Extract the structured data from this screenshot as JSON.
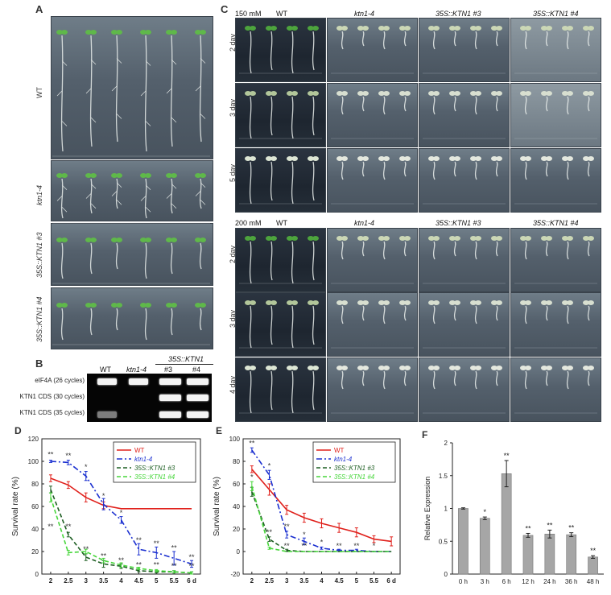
{
  "panels": {
    "a": "A",
    "b": "B",
    "c": "C",
    "d": "D",
    "e": "E",
    "f": "F"
  },
  "panel_a": {
    "rows": [
      "WT",
      "ktn1-4",
      "35S::KTN1 #3",
      "35S::KTN1 #4"
    ]
  },
  "panel_b": {
    "col_header": "35S::KTN1",
    "cols": [
      "WT",
      "ktn1-4",
      "#3",
      "#4"
    ],
    "rows": [
      "eIF4A (26 cycles)",
      "KTN1 CDS (30 cycles)",
      "KTN1 CDS (35 cycles)"
    ],
    "bands": [
      [
        1,
        1,
        1,
        1
      ],
      [
        0,
        0,
        1,
        1
      ],
      [
        0.5,
        0,
        1,
        1
      ]
    ]
  },
  "panel_c": {
    "top": {
      "concentration": "150 mM",
      "cols": [
        "WT",
        "ktn1-4",
        "35S::KTN1 #3",
        "35S::KTN1 #4"
      ],
      "rows": [
        "2 day",
        "3 day",
        "5 day"
      ]
    },
    "bottom": {
      "concentration": "200 mM",
      "cols": [
        "WT",
        "ktn1-4",
        "35S::KTN1 #3",
        "35S::KTN1 #4"
      ],
      "rows": [
        "2 day",
        "3 day",
        "4 day"
      ]
    }
  },
  "chart_data": [
    {
      "id": "D",
      "type": "line",
      "ylabel": "Survival rate (%)",
      "x": [
        2,
        2.5,
        3,
        3.5,
        4,
        4.5,
        5,
        5.5,
        6
      ],
      "xticklabels": [
        "2",
        "2.5",
        "3",
        "3.5",
        "4",
        "4.5",
        "5",
        "5.5",
        "6 d"
      ],
      "yticks": [
        0,
        20,
        40,
        60,
        80,
        100,
        120
      ],
      "ylim": [
        0,
        120
      ],
      "series": [
        {
          "name": "WT",
          "color": "#e0201b",
          "dash": "",
          "values": [
            85,
            79,
            68,
            61,
            58,
            58,
            58,
            58,
            58
          ],
          "errors": [
            3,
            3,
            4,
            3,
            0,
            0,
            0,
            0,
            0
          ]
        },
        {
          "name": "ktn1-4",
          "color": "#1a2fd0",
          "dash": "7,3,2,3",
          "values": [
            100,
            99,
            87,
            62,
            48,
            22,
            19,
            14,
            9
          ],
          "errors": [
            1,
            2,
            4,
            5,
            3,
            5,
            5,
            6,
            3
          ]
        },
        {
          "name": "35S::KTN1 #3",
          "color": "#1d5e22",
          "dash": "5,3",
          "values": [
            75,
            35,
            15,
            9,
            7,
            3,
            2,
            2,
            1
          ],
          "errors": [
            3,
            2,
            3,
            3,
            2,
            1,
            1,
            1,
            1
          ]
        },
        {
          "name": "35S::KTN1 #4",
          "color": "#46d63a",
          "dash": "5,3",
          "values": [
            68,
            19,
            20,
            12,
            8,
            5,
            3,
            2,
            1
          ],
          "errors": [
            4,
            2,
            2,
            2,
            2,
            1,
            1,
            1,
            1
          ]
        }
      ],
      "annotations": [
        {
          "x": 2,
          "y": 104,
          "text": "**",
          "color": "#1a2fd0"
        },
        {
          "x": 2.5,
          "y": 103,
          "text": "**",
          "color": "#1a2fd0"
        },
        {
          "x": 3,
          "y": 93,
          "text": "*",
          "color": "#1a2fd0"
        },
        {
          "x": 3.5,
          "y": 67,
          "text": "*",
          "color": "#1a2fd0"
        },
        {
          "x": 4,
          "y": 52,
          "text": "*",
          "color": "#1a2fd0"
        },
        {
          "x": 4.5,
          "y": 28,
          "text": "**",
          "color": "#1a2fd0"
        },
        {
          "x": 5,
          "y": 25,
          "text": "**",
          "color": "#1a2fd0"
        },
        {
          "x": 5.5,
          "y": 21,
          "text": "**",
          "color": "#1a2fd0"
        },
        {
          "x": 6,
          "y": 13,
          "text": "**",
          "color": "#1a2fd0"
        },
        {
          "x": 2,
          "y": 40,
          "text": "**",
          "color": "#1d5e22"
        },
        {
          "x": 2.5,
          "y": 40,
          "text": "**",
          "color": "#1d5e22"
        },
        {
          "x": 3,
          "y": 20,
          "text": "**",
          "color": "#1d5e22"
        },
        {
          "x": 3.5,
          "y": 14,
          "text": "**",
          "color": "#1d5e22"
        },
        {
          "x": 4,
          "y": 10,
          "text": "**",
          "color": "#1d5e22"
        },
        {
          "x": 4.5,
          "y": 6,
          "text": "**",
          "color": "#1d5e22"
        },
        {
          "x": 5,
          "y": 6,
          "text": "**",
          "color": "#1d5e22"
        },
        {
          "x": 5.5,
          "y": 5,
          "text": "**",
          "color": "#1d5e22"
        },
        {
          "x": 6,
          "y": 5,
          "text": "**",
          "color": "#1d5e22"
        }
      ]
    },
    {
      "id": "E",
      "type": "line",
      "ylabel": "Survival rate (%)",
      "x": [
        2,
        2.5,
        3,
        3.5,
        4,
        4.5,
        5,
        5.5,
        6
      ],
      "xticklabels": [
        "2",
        "2.5",
        "3",
        "3.5",
        "4",
        "4.5",
        "5",
        "5.5",
        "6 d"
      ],
      "yticks": [
        -20,
        0,
        20,
        40,
        60,
        80,
        100
      ],
      "ylim": [
        -20,
        100
      ],
      "series": [
        {
          "name": "WT",
          "color": "#e0201b",
          "dash": "",
          "values": [
            73,
            55,
            37,
            30,
            25,
            21,
            17,
            11,
            9
          ],
          "errors": [
            3,
            5,
            4,
            4,
            4,
            4,
            4,
            3,
            4
          ]
        },
        {
          "name": "ktn1-4",
          "color": "#1a2fd0",
          "dash": "7,3,2,3",
          "values": [
            90,
            68,
            15,
            9,
            3,
            1,
            1,
            0,
            0
          ],
          "errors": [
            2,
            4,
            3,
            3,
            1,
            1,
            1,
            0,
            0
          ]
        },
        {
          "name": "35S::KTN1 #3",
          "color": "#1d5e22",
          "dash": "5,3",
          "values": [
            53,
            11,
            1,
            0,
            0,
            0,
            0,
            0,
            0
          ],
          "errors": [
            4,
            2,
            1,
            0,
            0,
            0,
            0,
            0,
            0
          ]
        },
        {
          "name": "35S::KTN1 #4",
          "color": "#46d63a",
          "dash": "5,3",
          "values": [
            58,
            3,
            0,
            0,
            0,
            0,
            0,
            0,
            0
          ],
          "errors": [
            4,
            1,
            0,
            0,
            0,
            0,
            0,
            0,
            0
          ]
        }
      ],
      "annotations": [
        {
          "x": 2,
          "y": 94,
          "text": "**",
          "color": "#1a2fd0"
        },
        {
          "x": 2.5,
          "y": 74,
          "text": "*",
          "color": "#1a2fd0"
        },
        {
          "x": 3,
          "y": 20,
          "text": "**",
          "color": "#1a2fd0"
        },
        {
          "x": 3.5,
          "y": 13,
          "text": "*",
          "color": "#1a2fd0"
        },
        {
          "x": 4,
          "y": 6,
          "text": "*",
          "color": "#1a2fd0"
        },
        {
          "x": 4.5,
          "y": 3,
          "text": "**",
          "color": "#1a2fd0"
        },
        {
          "x": 5,
          "y": 3,
          "text": "**",
          "color": "#1a2fd0"
        },
        {
          "x": 5.5,
          "y": 3,
          "text": "*",
          "color": "#1a2fd0"
        },
        {
          "x": 2,
          "y": 64,
          "text": "*",
          "color": "#1d5e22"
        },
        {
          "x": 2.5,
          "y": 15,
          "text": "**",
          "color": "#1d5e22"
        },
        {
          "x": 3,
          "y": 3,
          "text": "**",
          "color": "#1d5e22"
        },
        {
          "x": 3.5,
          "y": 3,
          "text": "**",
          "color": "#1d5e22"
        }
      ]
    },
    {
      "id": "F",
      "type": "bar",
      "ylabel": "Relative Expression",
      "categories": [
        "0 h",
        "3 h",
        "6 h",
        "12 h",
        "24 h",
        "36 h",
        "48 h"
      ],
      "values": [
        1.0,
        0.85,
        1.53,
        0.59,
        0.61,
        0.6,
        0.26
      ],
      "errors": [
        0.01,
        0.02,
        0.2,
        0.03,
        0.06,
        0.03,
        0.02
      ],
      "significance": [
        "",
        "*",
        "**",
        "**",
        "**",
        "**",
        "**"
      ],
      "yticks": [
        "0",
        "0.5",
        "1",
        "1.5",
        "2"
      ],
      "ylim": [
        0,
        2
      ],
      "bar_color": "#a6a6a6"
    }
  ]
}
